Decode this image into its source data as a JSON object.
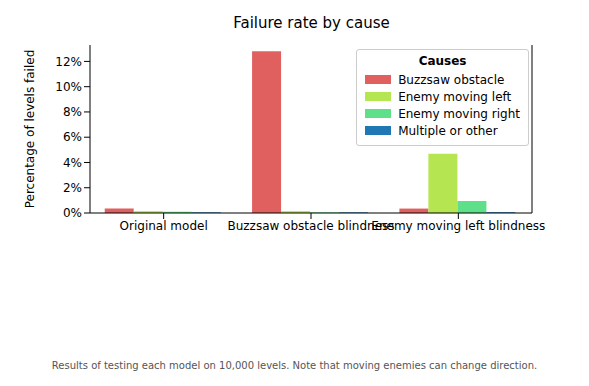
{
  "chart_data": {
    "type": "bar",
    "title": "Failure rate by cause",
    "y_label": "Percentage of levels failed",
    "caption": "Results of testing each model on 10,000 levels. Note that moving enemies can change direction.",
    "categories": [
      "Original model",
      "Buzzsaw obstacle blindness",
      "Enemy moving left blindness"
    ],
    "series": [
      {
        "name": "Buzzsaw obstacle",
        "color": "#e06060",
        "values": [
          0.35,
          12.8,
          0.35
        ]
      },
      {
        "name": "Enemy moving left",
        "color": "#b5e550",
        "values": [
          0.15,
          0.15,
          4.7
        ]
      },
      {
        "name": "Enemy moving right",
        "color": "#5ee08a",
        "values": [
          0.1,
          0.05,
          0.95
        ]
      },
      {
        "name": "Multiple or other",
        "color": "#1f78b4",
        "values": [
          0.05,
          0.05,
          0.05
        ]
      }
    ],
    "ylim": [
      0,
      13.3
    ],
    "yticks": [
      {
        "value": 0,
        "label": "0%"
      },
      {
        "value": 2,
        "label": "2%"
      },
      {
        "value": 4,
        "label": "4%"
      },
      {
        "value": 6,
        "label": "6%"
      },
      {
        "value": 8,
        "label": "8%"
      },
      {
        "value": 10,
        "label": "10%"
      },
      {
        "value": 12,
        "label": "12%"
      }
    ],
    "grid": false,
    "legend": "upper right",
    "legend_title": "Causes"
  }
}
